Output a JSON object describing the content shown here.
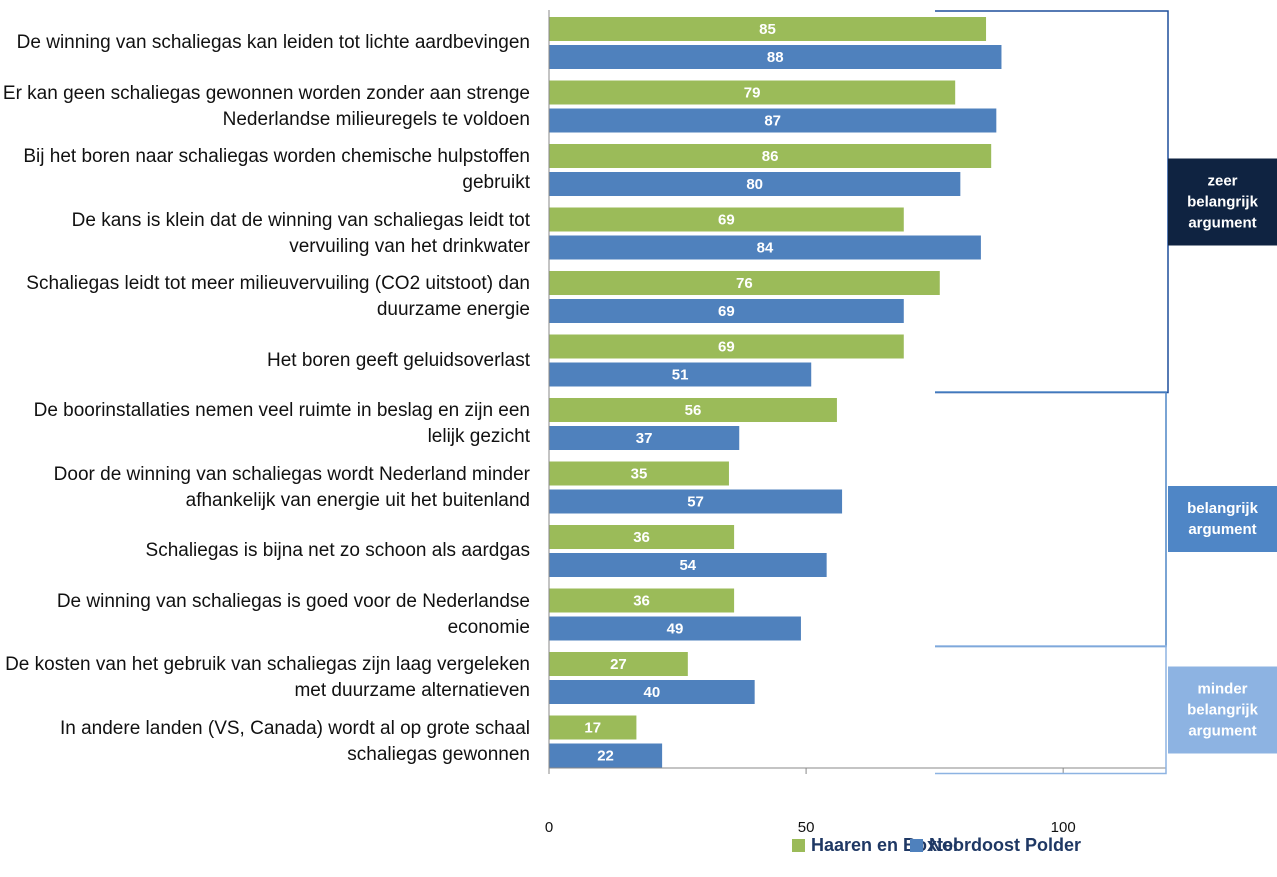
{
  "chart_data": {
    "type": "bar",
    "orientation": "horizontal",
    "categories": [
      "De winning van schaliegas kan leiden tot lichte aardbevingen",
      "Er kan geen schaliegas gewonnen worden zonder aan strenge Nederlandse milieuregels te voldoen",
      "Bij het boren naar schaliegas worden chemische hulpstoffen gebruikt",
      "De kans is klein dat de winning van schaliegas leidt tot vervuiling van het drinkwater",
      "Schaliegas leidt tot meer milieuvervuiling (CO2 uitstoot) dan duurzame energie",
      "Het boren geeft geluidsoverlast",
      "De boorinstallaties nemen veel ruimte in beslag en zijn een lelijk gezicht",
      "Door de winning van schaliegas wordt Nederland minder afhankelijk van energie uit het buitenland",
      "Schaliegas is bijna net zo schoon als aardgas",
      "De winning van schaliegas is goed voor de Nederlandse economie",
      "De kosten van het gebruik van schaliegas zijn laag vergeleken met duurzame alternatieven",
      "In andere landen (VS, Canada) wordt al op grote schaal schaliegas gewonnen"
    ],
    "series": [
      {
        "name": "Haaren en Boxtel",
        "color": "#9bbb59",
        "values": [
          85,
          79,
          86,
          69,
          76,
          69,
          56,
          35,
          36,
          36,
          27,
          17
        ]
      },
      {
        "name": "Noordoost Polder",
        "color": "#4f81bd",
        "values": [
          88,
          87,
          80,
          84,
          69,
          51,
          37,
          57,
          54,
          49,
          40,
          22
        ]
      }
    ],
    "xlim": [
      0,
      120
    ],
    "xticks": [
      0,
      50,
      100
    ],
    "groups": [
      {
        "label": "zeer belangrijk argument",
        "color": "#0f2341",
        "size": 6
      },
      {
        "label": "belangrijk argument",
        "color": "#4f86c6",
        "size": 4
      },
      {
        "label": "minder belangrijk argument",
        "color": "#8db3e2",
        "size": 2
      }
    ]
  }
}
